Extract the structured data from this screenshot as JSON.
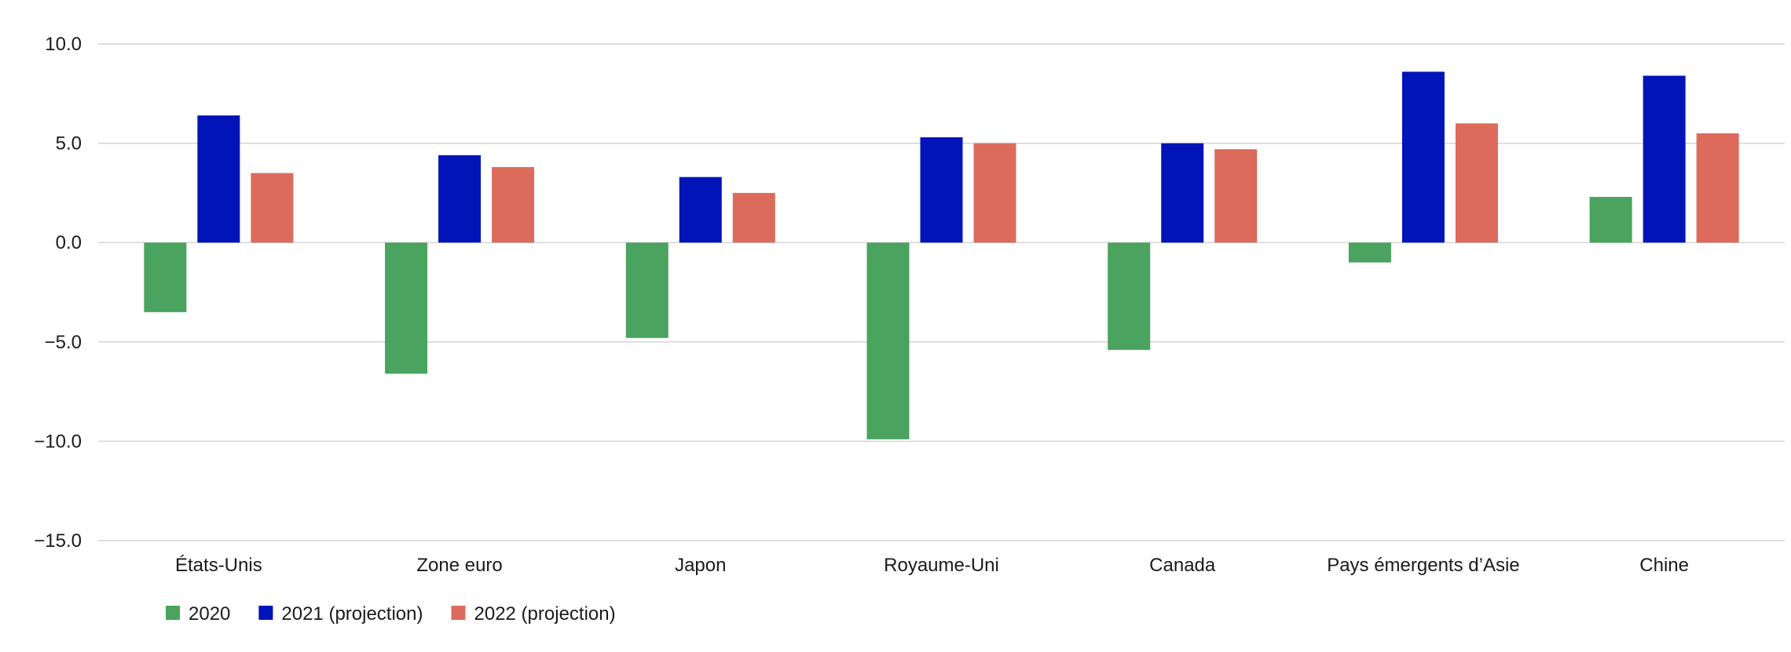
{
  "chart_data": {
    "type": "bar",
    "categories": [
      "États-Unis",
      "Zone euro",
      "Japon",
      "Royaume-Uni",
      "Canada",
      "Pays émergents d’Asie",
      "Chine"
    ],
    "series": [
      {
        "name": "2020",
        "color": "#4aa35e",
        "values": [
          -3.5,
          -6.6,
          -4.8,
          -9.9,
          -5.4,
          -1.0,
          2.3
        ]
      },
      {
        "name": "2021 (projection)",
        "color": "#0014b8",
        "values": [
          6.4,
          4.4,
          3.3,
          5.3,
          5.0,
          8.6,
          8.4
        ]
      },
      {
        "name": "2022 (projection)",
        "color": "#dd6b5b",
        "values": [
          3.5,
          3.8,
          2.5,
          5.0,
          4.7,
          6.0,
          5.5
        ]
      }
    ],
    "ylim": [
      -15,
      10
    ],
    "yticks": [
      "10.0",
      "5.0",
      "0.0",
      "−5.0",
      "−10.0",
      "−15.0"
    ],
    "ytick_values": [
      10,
      5,
      0,
      -5,
      -10,
      -15
    ],
    "grid": true,
    "legend_position": "bottom-left",
    "title": "",
    "xlabel": "",
    "ylabel": ""
  }
}
